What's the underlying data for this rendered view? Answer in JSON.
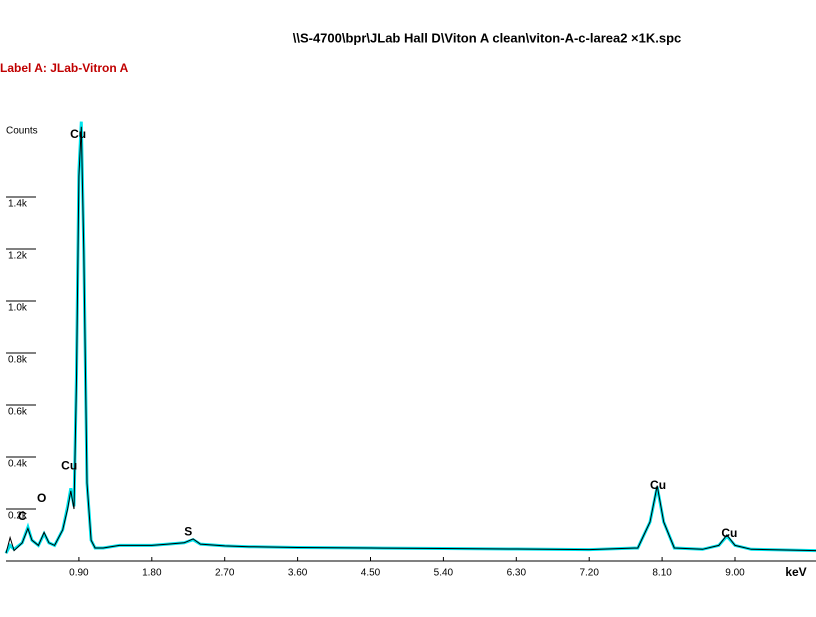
{
  "chart_data": {
    "type": "line",
    "title": "\\\\S-4700\\bpr\\JLab Hall D\\Viton A clean\\viton-A-c-larea2 ×1K.spc",
    "subtitle": "Label A: JLab-Vitron A",
    "y_label": "Counts",
    "x_label": "keV",
    "xlim": [
      0,
      10
    ],
    "ylim": [
      0,
      1700
    ],
    "xticks": [
      {
        "value": 0.9,
        "label": "0.90"
      },
      {
        "value": 1.8,
        "label": "1.80"
      },
      {
        "value": 2.7,
        "label": "2.70"
      },
      {
        "value": 3.6,
        "label": "3.60"
      },
      {
        "value": 4.5,
        "label": "4.50"
      },
      {
        "value": 5.4,
        "label": "5.40"
      },
      {
        "value": 6.3,
        "label": "6.30"
      },
      {
        "value": 7.2,
        "label": "7.20"
      },
      {
        "value": 8.1,
        "label": "8.10"
      },
      {
        "value": 9.0,
        "label": "9.00"
      }
    ],
    "yticks": [
      {
        "value": 200,
        "label": "0.2k"
      },
      {
        "value": 400,
        "label": "0.4k"
      },
      {
        "value": 600,
        "label": "0.6k"
      },
      {
        "value": 800,
        "label": "0.8k"
      },
      {
        "value": 1000,
        "label": "1.0k"
      },
      {
        "value": 1200,
        "label": "1.2k"
      },
      {
        "value": 1400,
        "label": "1.4k"
      }
    ],
    "x": [
      0.0,
      0.05,
      0.1,
      0.2,
      0.27,
      0.32,
      0.4,
      0.47,
      0.53,
      0.6,
      0.7,
      0.76,
      0.8,
      0.84,
      0.87,
      0.9,
      0.93,
      0.96,
      1.0,
      1.05,
      1.1,
      1.2,
      1.4,
      1.8,
      2.0,
      2.2,
      2.31,
      2.4,
      2.7,
      3.0,
      3.6,
      4.5,
      5.4,
      6.3,
      7.2,
      7.8,
      7.95,
      8.04,
      8.12,
      8.25,
      8.6,
      8.8,
      8.9,
      9.0,
      9.2,
      10.0
    ],
    "series": [
      {
        "color": "#00e5ee",
        "values": [
          30,
          60,
          45,
          70,
          130,
          80,
          60,
          105,
          70,
          60,
          120,
          210,
          280,
          210,
          720,
          1500,
          1690,
          1200,
          300,
          80,
          50,
          50,
          60,
          60,
          65,
          70,
          82,
          65,
          58,
          55,
          52,
          50,
          48,
          46,
          44,
          50,
          150,
          285,
          150,
          50,
          45,
          60,
          95,
          60,
          45,
          40
        ]
      },
      {
        "color": "#000000",
        "values": [
          30,
          90,
          40,
          70,
          125,
          80,
          60,
          110,
          70,
          60,
          120,
          200,
          270,
          200,
          700,
          1480,
          1670,
          1190,
          300,
          80,
          50,
          50,
          60,
          60,
          65,
          70,
          85,
          65,
          58,
          55,
          52,
          50,
          48,
          46,
          44,
          50,
          150,
          290,
          150,
          50,
          45,
          60,
          100,
          60,
          45,
          40
        ]
      }
    ],
    "annotations": [
      {
        "text": "C",
        "x": 0.2,
        "y": 170
      },
      {
        "text": "O",
        "x": 0.44,
        "y": 240
      },
      {
        "text": "Cu",
        "x": 0.89,
        "y": 1640
      },
      {
        "text": "Cu",
        "x": 0.78,
        "y": 365
      },
      {
        "text": "S",
        "x": 2.25,
        "y": 110
      },
      {
        "text": "Cu",
        "x": 8.05,
        "y": 290
      },
      {
        "text": "Cu",
        "x": 8.93,
        "y": 105
      }
    ]
  }
}
